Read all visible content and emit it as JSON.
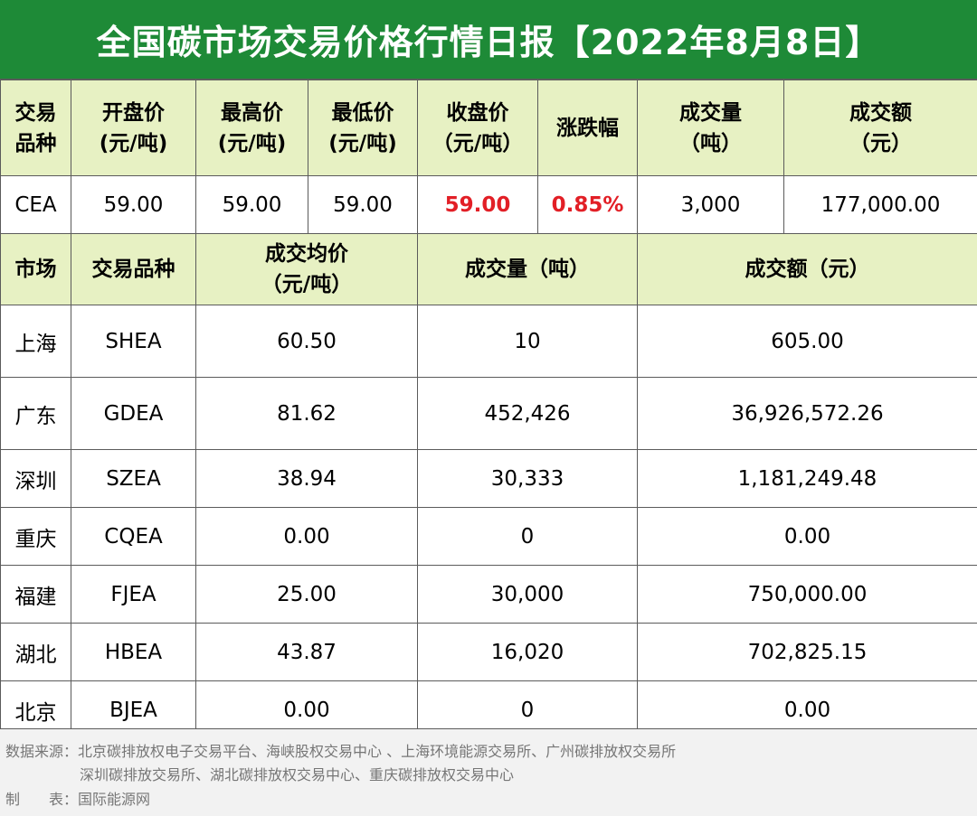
{
  "title": "全国碳市场交易价格行情日报【2022年8月8日】",
  "national": {
    "headers": [
      [
        "交易",
        "品种"
      ],
      [
        "开盘价",
        "(元/吨)"
      ],
      [
        "最高价",
        "(元/吨)"
      ],
      [
        "最低价",
        "(元/吨)"
      ],
      [
        "收盘价",
        "（元/吨）"
      ],
      [
        "涨跌幅",
        ""
      ],
      [
        "成交量",
        "（吨）"
      ],
      [
        "成交额",
        "（元）"
      ]
    ],
    "row": {
      "variety": "CEA",
      "open": "59.00",
      "high": "59.00",
      "low": "59.00",
      "close": "59.00",
      "change": "0.85%",
      "volume": "3,000",
      "amount": "177,000.00"
    }
  },
  "regional": {
    "headers": {
      "market": "市场",
      "variety": "交易品种",
      "avg_price_line1": "成交均价",
      "avg_price_line2": "（元/吨）",
      "volume": "成交量（吨）",
      "amount": "成交额（元）"
    },
    "rows": [
      {
        "market": "上海",
        "variety": "SHEA",
        "avg_price": "60.50",
        "volume": "10",
        "amount": "605.00"
      },
      {
        "market": "广东",
        "variety": "GDEA",
        "avg_price": "81.62",
        "volume": "452,426",
        "amount": "36,926,572.26"
      },
      {
        "market": "深圳",
        "variety": "SZEA",
        "avg_price": "38.94",
        "volume": "30,333",
        "amount": "1,181,249.48"
      },
      {
        "market": "重庆",
        "variety": "CQEA",
        "avg_price": "0.00",
        "volume": "0",
        "amount": "0.00"
      },
      {
        "market": "福建",
        "variety": "FJEA",
        "avg_price": "25.00",
        "volume": "30,000",
        "amount": "750,000.00"
      },
      {
        "market": "湖北",
        "variety": "HBEA",
        "avg_price": "43.87",
        "volume": "16,020",
        "amount": "702,825.15"
      },
      {
        "market": "北京",
        "variety": "BJEA",
        "avg_price": "0.00",
        "volume": "0",
        "amount": "0.00"
      }
    ]
  },
  "footer": {
    "source_line1": "数据来源：北京碳排放权电子交易平台、海峡股权交易中心 、上海环境能源交易所、广州碳排放权交易所",
    "source_line2": "深圳碳排放交易所、湖北碳排放权交易中心、重庆碳排放权交易中心",
    "maker_label": "制　　表：",
    "maker": "国际能源网"
  },
  "colors": {
    "title_bg": "#1e8a37",
    "header_bg": "#e7f1c3",
    "highlight_red": "#e21f26",
    "footer_text": "#767676"
  }
}
